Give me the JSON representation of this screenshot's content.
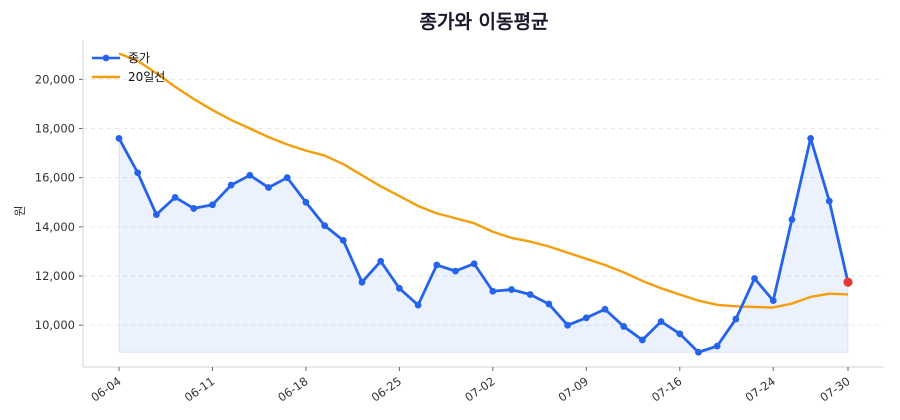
{
  "chart_data": {
    "type": "line",
    "title": "종가와 이동평균",
    "xlabel": "",
    "ylabel": "원",
    "ylim": [
      8300,
      21600
    ],
    "yticks": [
      10000,
      12000,
      14000,
      16000,
      18000,
      20000
    ],
    "ytick_labels": [
      "10,000",
      "12,000",
      "14,000",
      "16,000",
      "18,000",
      "20,000"
    ],
    "xticks": [
      {
        "index": 0,
        "label": "06-04"
      },
      {
        "index": 5,
        "label": "06-11"
      },
      {
        "index": 10,
        "label": "06-18"
      },
      {
        "index": 15,
        "label": "06-25"
      },
      {
        "index": 20,
        "label": "07-02"
      },
      {
        "index": 25,
        "label": "07-09"
      },
      {
        "index": 30,
        "label": "07-16"
      },
      {
        "index": 35,
        "label": "07-24"
      },
      {
        "index": 39,
        "label": "07-30"
      }
    ],
    "grid": "y-dashed",
    "legend_position": "top-left",
    "fill_baseline": 8900,
    "series": [
      {
        "name": "종가",
        "color": "#2563eb",
        "marker": "circle",
        "values": [
          17600,
          16200,
          14500,
          15200,
          14750,
          14900,
          15700,
          16100,
          15600,
          16000,
          15000,
          14050,
          13450,
          11750,
          12600,
          11500,
          10820,
          12450,
          12200,
          12500,
          11380,
          11450,
          11250,
          10860,
          10000,
          10300,
          10650,
          9950,
          9400,
          10150,
          9650,
          8900,
          9150,
          10250,
          11900,
          11000,
          14300,
          17600,
          15050,
          11750
        ]
      },
      {
        "name": "20일선",
        "color": "#f59e0b",
        "marker": "none",
        "values": [
          21050,
          20750,
          20250,
          19700,
          19200,
          18750,
          18350,
          18000,
          17650,
          17350,
          17100,
          16900,
          16550,
          16100,
          15650,
          15250,
          14850,
          14550,
          14350,
          14150,
          13800,
          13550,
          13400,
          13200,
          12950,
          12700,
          12450,
          12150,
          11800,
          11500,
          11250,
          11000,
          10830,
          10770,
          10740,
          10720,
          10880,
          11150,
          11280,
          11250
        ]
      }
    ],
    "highlight_last_point_color": "#e53935"
  }
}
